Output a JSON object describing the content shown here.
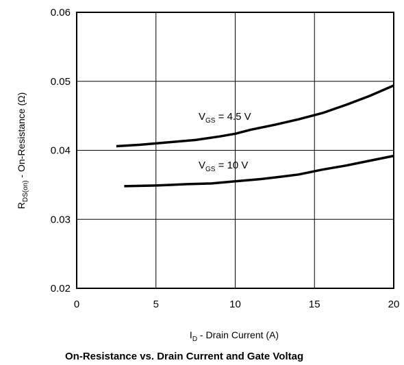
{
  "chart_data": {
    "type": "line",
    "title": "On-Resistance vs. Drain Current and Gate Voltag",
    "xlabel": {
      "main": "I",
      "sub": "D",
      "rest": " - Drain Current (A)"
    },
    "ylabel": {
      "main": "R",
      "sub": "DS(on)",
      "rest": " - On-Resistance (Ω)"
    },
    "xlim": [
      0,
      20
    ],
    "ylim": [
      0.02,
      0.06
    ],
    "x_ticks": [
      0,
      5,
      10,
      15,
      20
    ],
    "x_tick_labels": [
      "0",
      "5",
      "10",
      "15",
      "20"
    ],
    "y_ticks": [
      0.02,
      0.03,
      0.04,
      0.05,
      0.06
    ],
    "y_tick_labels": [
      "0.02",
      "0.03",
      "0.04",
      "0.05",
      "0.06"
    ],
    "grid": true,
    "line_color": "#000000",
    "series": [
      {
        "label": {
          "main": "V",
          "sub": "GS",
          "rest": " = 4.5 V"
        },
        "x": [
          2.5,
          4,
          5,
          6,
          7.5,
          9,
          10,
          11,
          12.5,
          14,
          15.5,
          17,
          18.5,
          20
        ],
        "y": [
          0.0406,
          0.0408,
          0.041,
          0.0412,
          0.0415,
          0.042,
          0.0424,
          0.043,
          0.0437,
          0.0445,
          0.0454,
          0.0466,
          0.0479,
          0.0494
        ]
      },
      {
        "label": {
          "main": "V",
          "sub": "GS",
          "rest": " = 10 V"
        },
        "x": [
          3,
          5,
          7,
          8.5,
          10,
          11.5,
          13,
          14,
          15.5,
          17,
          18.5,
          20
        ],
        "y": [
          0.0348,
          0.0349,
          0.0351,
          0.0352,
          0.0355,
          0.0358,
          0.0362,
          0.0365,
          0.0372,
          0.0378,
          0.0385,
          0.0392
        ]
      }
    ]
  }
}
